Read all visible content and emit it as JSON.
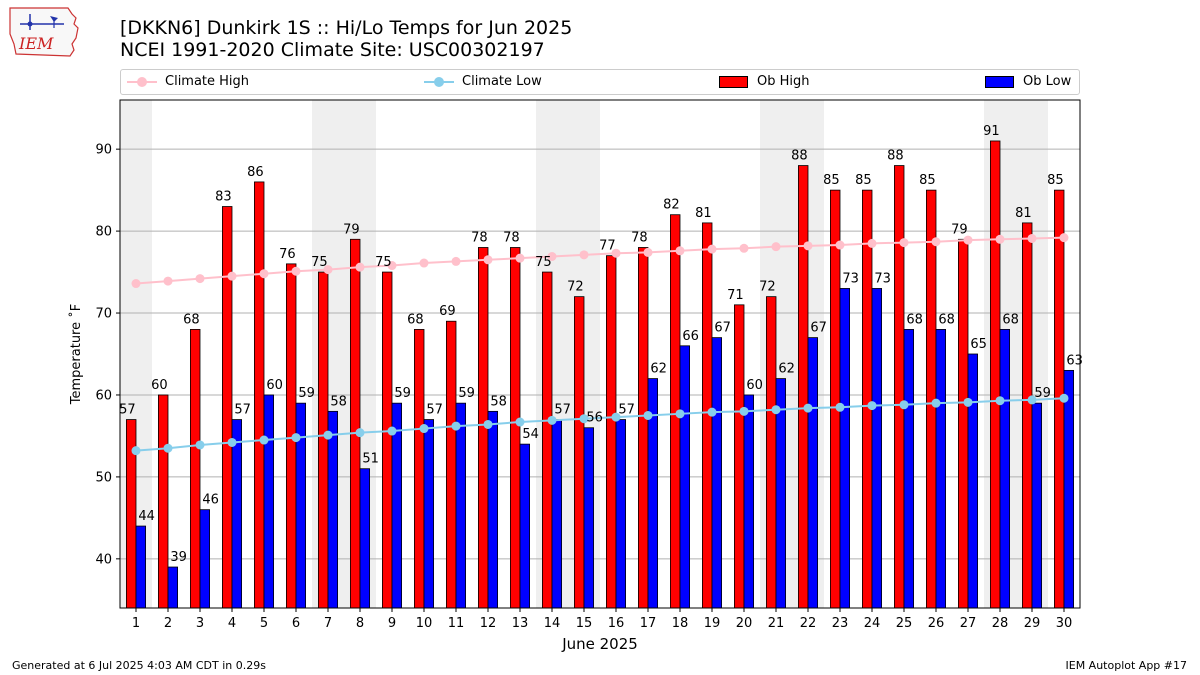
{
  "header": {
    "title": "[DKKN6] Dunkirk 1S :: Hi/Lo Temps for Jun 2025",
    "subtitle": "NCEI 1991-2020 Climate Site: USC00302197"
  },
  "logo": {
    "text": "IEM",
    "icon": "iem-iowa-logo"
  },
  "footer": {
    "left": "Generated at 6 Jul 2025 4:03 AM CDT in 0.29s",
    "right": "IEM Autoplot App #17"
  },
  "legend": {
    "placement": "top",
    "items": [
      {
        "label": "Climate High",
        "kind": "line",
        "color": "#ffc0cb"
      },
      {
        "label": "Climate Low",
        "kind": "line",
        "color": "#87ceeb"
      },
      {
        "label": "Ob High",
        "kind": "bar",
        "color": "#ff0000"
      },
      {
        "label": "Ob Low",
        "kind": "bar",
        "color": "#0000ff"
      }
    ]
  },
  "chart_data": {
    "type": "bar",
    "xlabel": "June 2025",
    "ylabel": "Temperature ˚F",
    "ylim": [
      34,
      96
    ],
    "yticks": [
      40,
      50,
      60,
      70,
      80,
      90
    ],
    "grid": "y",
    "weekend_shading": [
      1,
      7,
      8,
      14,
      15,
      21,
      22,
      28,
      29
    ],
    "categories": [
      "1",
      "2",
      "3",
      "4",
      "5",
      "6",
      "7",
      "8",
      "9",
      "10",
      "11",
      "12",
      "13",
      "14",
      "15",
      "16",
      "17",
      "18",
      "19",
      "20",
      "21",
      "22",
      "23",
      "24",
      "25",
      "26",
      "27",
      "28",
      "29",
      "30"
    ],
    "series": [
      {
        "name": "Ob High",
        "kind": "bar",
        "color": "#ff0000",
        "values": [
          57,
          60,
          68,
          83,
          86,
          76,
          75,
          79,
          75,
          68,
          69,
          78,
          78,
          75,
          72,
          77,
          78,
          82,
          81,
          71,
          72,
          88,
          85,
          85,
          88,
          85,
          79,
          91,
          81,
          85
        ]
      },
      {
        "name": "Ob Low",
        "kind": "bar",
        "color": "#0000ff",
        "values": [
          44,
          39,
          46,
          57,
          60,
          59,
          58,
          51,
          59,
          57,
          59,
          58,
          54,
          57,
          56,
          57,
          62,
          66,
          67,
          60,
          62,
          67,
          73,
          73,
          68,
          68,
          65,
          68,
          59,
          63
        ]
      },
      {
        "name": "Climate High",
        "kind": "line",
        "color": "#ffc0cb",
        "values": [
          73.6,
          73.9,
          74.2,
          74.5,
          74.8,
          75.1,
          75.3,
          75.6,
          75.8,
          76.1,
          76.3,
          76.5,
          76.7,
          76.9,
          77.1,
          77.3,
          77.4,
          77.6,
          77.8,
          77.9,
          78.1,
          78.2,
          78.3,
          78.5,
          78.6,
          78.7,
          78.9,
          79.0,
          79.1,
          79.2
        ]
      },
      {
        "name": "Climate Low",
        "kind": "line",
        "color": "#87ceeb",
        "values": [
          53.2,
          53.5,
          53.9,
          54.2,
          54.5,
          54.8,
          55.1,
          55.4,
          55.6,
          55.9,
          56.2,
          56.4,
          56.7,
          56.9,
          57.1,
          57.3,
          57.5,
          57.7,
          57.9,
          58.0,
          58.2,
          58.4,
          58.5,
          58.7,
          58.8,
          59.0,
          59.1,
          59.3,
          59.4,
          59.6
        ]
      }
    ]
  }
}
